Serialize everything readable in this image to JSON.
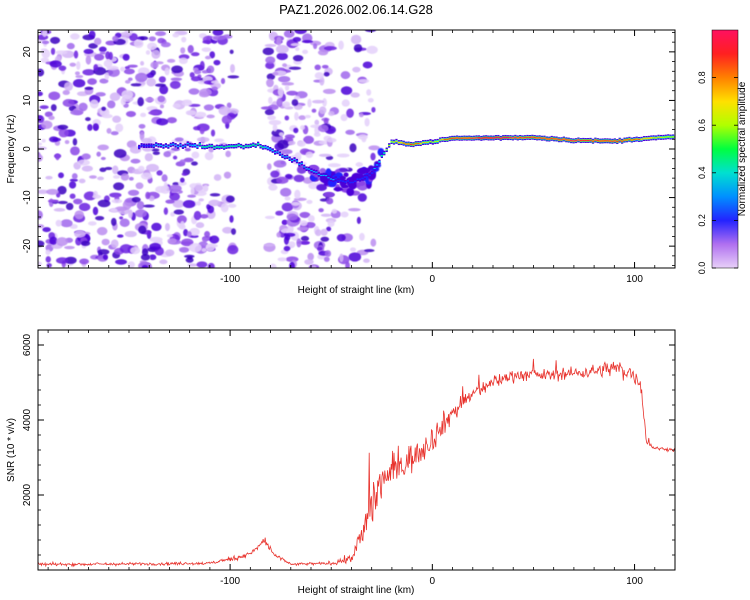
{
  "title": "PAZ1.2026.002.06.14.G28",
  "colors": {
    "background": "#ffffff",
    "frame": "#000000",
    "snr_line": "#e8322c",
    "scatter": "#9b59f0",
    "scatter_dark": "#4b00d8",
    "scatter_light": "#e2cdfa"
  },
  "chart_data": [
    {
      "type": "heatmap",
      "title": "PAZ1.2026.002.06.14.G28",
      "xlabel": "Height of straight line (km)",
      "ylabel": "Frequency (Hz)",
      "xlim": [
        -195,
        120
      ],
      "ylim": [
        -24.5,
        24.5
      ],
      "x_ticks": [
        -100,
        0,
        100
      ],
      "x_tick_labels": [
        "-100",
        "0",
        "100"
      ],
      "y_ticks": [
        -20,
        -10,
        0,
        10,
        20
      ],
      "y_tick_labels": [
        "-20",
        "-10",
        "0",
        "10",
        "20"
      ],
      "colorbar": {
        "label": "Normalized spectral amplitude",
        "range": [
          0,
          1
        ],
        "ticks": [
          0.0,
          0.2,
          0.4,
          0.6,
          0.8
        ],
        "tick_labels": [
          "0.0",
          "0.2",
          "0.4",
          "0.6",
          "0.8"
        ],
        "stops": [
          "#e8d0f8",
          "#8a2be2",
          "#2323ff",
          "#00bfff",
          "#00ff70",
          "#c8ff00",
          "#ffd000",
          "#ff6000",
          "#ff2d2d",
          "#ff1060"
        ]
      },
      "ridge": {
        "description": "main signal track",
        "points": [
          {
            "x": -145,
            "y": 0.5,
            "amplitude": 0.25
          },
          {
            "x": -120,
            "y": 0.8,
            "amplitude": 0.35
          },
          {
            "x": -105,
            "y": 0.4,
            "amplitude": 0.5
          },
          {
            "x": -85,
            "y": 0.8,
            "amplitude": 0.4
          },
          {
            "x": -70,
            "y": -2.0,
            "amplitude": 0.3
          },
          {
            "x": -55,
            "y": -5.5,
            "amplitude": 0.3
          },
          {
            "x": -40,
            "y": -7.0,
            "amplitude": 0.25
          },
          {
            "x": -30,
            "y": -5.0,
            "amplitude": 0.25
          },
          {
            "x": -20,
            "y": 1.5,
            "amplitude": 0.6
          },
          {
            "x": -10,
            "y": 1.0,
            "amplitude": 0.85
          },
          {
            "x": 0,
            "y": 1.5,
            "amplitude": 0.5
          },
          {
            "x": 10,
            "y": 2.2,
            "amplitude": 0.9
          },
          {
            "x": 30,
            "y": 2.3,
            "amplitude": 1.0
          },
          {
            "x": 50,
            "y": 2.4,
            "amplitude": 0.9
          },
          {
            "x": 70,
            "y": 1.8,
            "amplitude": 0.95
          },
          {
            "x": 90,
            "y": 1.6,
            "amplitude": 0.9
          },
          {
            "x": 105,
            "y": 2.2,
            "amplitude": 0.7
          },
          {
            "x": 120,
            "y": 2.5,
            "amplitude": 0.55
          }
        ]
      }
    },
    {
      "type": "line",
      "xlabel": "Height of straight line (km)",
      "ylabel": "SNR (10 * v/v)",
      "xlim": [
        -195,
        120
      ],
      "ylim": [
        0,
        6400
      ],
      "x_ticks": [
        -100,
        0,
        100
      ],
      "x_tick_labels": [
        "-100",
        "0",
        "100"
      ],
      "y_ticks": [
        2000,
        4000,
        6000
      ],
      "y_tick_labels": [
        "2000",
        "4000",
        "6000"
      ],
      "series": [
        {
          "name": "SNR",
          "envelope": {
            "x": [
              -195,
              -150,
              -110,
              -95,
              -88,
              -83,
              -78,
              -70,
              -50,
              -40,
              -35,
              -30,
              -25,
              -20,
              -10,
              0,
              10,
              20,
              30,
              40,
              60,
              80,
              90,
              95,
              100,
              103,
              106,
              110,
              120
            ],
            "y": [
              150,
              160,
              180,
              350,
              500,
              800,
              400,
              150,
              180,
              300,
              900,
              1800,
              2400,
              2600,
              3000,
              3500,
              4200,
              4700,
              5000,
              5200,
              5200,
              5300,
              5400,
              5300,
              5200,
              5000,
              3400,
              3250,
              3200
            ],
            "noise": [
              70,
              70,
              70,
              120,
              150,
              200,
              120,
              60,
              80,
              200,
              700,
              1100,
              1200,
              900,
              700,
              600,
              500,
              350,
              300,
              300,
              250,
              300,
              400,
              400,
              400,
              450,
              150,
              80,
              80
            ]
          }
        }
      ]
    }
  ]
}
